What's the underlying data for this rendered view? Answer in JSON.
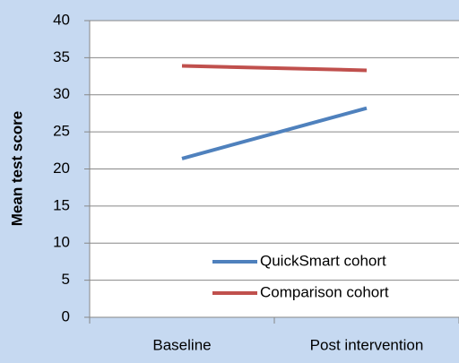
{
  "chart_data": {
    "type": "line",
    "y_label": "Mean test score",
    "categories": [
      "Baseline",
      "Post intervention"
    ],
    "series": [
      {
        "name": "QuickSmart cohort",
        "color": "#4f81bd",
        "values": [
          21.4,
          28.2
        ]
      },
      {
        "name": "Comparison cohort",
        "color": "#c0504d",
        "values": [
          33.9,
          33.3
        ]
      }
    ],
    "ylim": [
      0,
      40
    ],
    "yticks": [
      0,
      5,
      10,
      15,
      20,
      25,
      30,
      35,
      40
    ],
    "grid": true,
    "legend": "bottom-right"
  }
}
